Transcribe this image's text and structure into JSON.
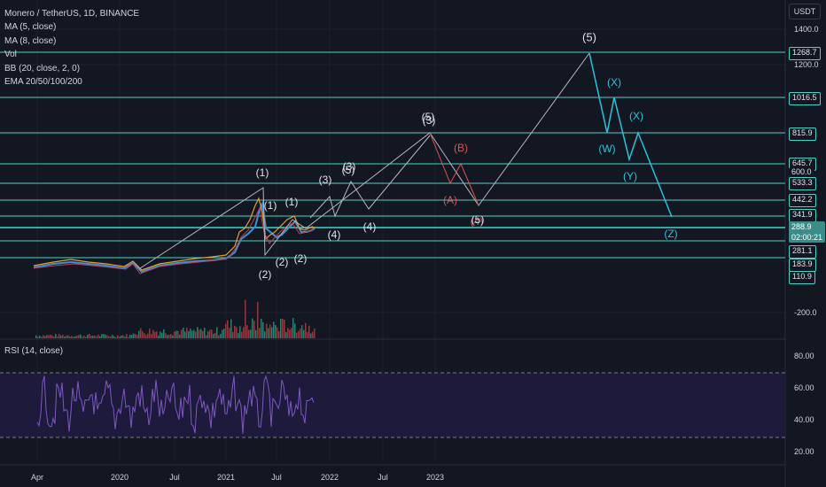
{
  "header": {
    "title": "Monero / TetherUS, 1D, BINANCE",
    "indicators": [
      "MA (5, close)",
      "MA (8, close)",
      "Vol",
      "BB (20, close, 2, 0)",
      "EMA 20/50/100/200"
    ]
  },
  "rsi_panel": {
    "title": "RSI (14, close)",
    "levels": [
      "80.00",
      "60.00",
      "40.00",
      "20.00"
    ]
  },
  "price_scale": {
    "currency": "USDT",
    "labels": [
      "1400.0",
      "1200.0",
      "-200.0"
    ],
    "tags": [
      "1268.7",
      "1016.5",
      "815.9",
      "645.7",
      "600.0",
      "533.3",
      "442.2",
      "341.9",
      "281.1",
      "183.9",
      "110.9"
    ],
    "current_price": "288.9",
    "countdown": "02:00:21"
  },
  "time_axis": [
    "Apr",
    "2020",
    "Jul",
    "2021",
    "Jul",
    "2022",
    "Jul",
    "2023"
  ],
  "wave_labels": [
    "(1)",
    "(2)",
    "(1)",
    "(2)",
    "(1)",
    "(2)",
    "(3)",
    "(4)",
    "(3)",
    "(5)",
    "(4)",
    "(5)",
    "(3)",
    "(5)",
    "(A)",
    "(B)",
    "(4)",
    "(5)",
    "(W)",
    "(X)",
    "(X)",
    "(Y)",
    "(Z)"
  ],
  "colors": {
    "background": "#131722",
    "wave_lines": "#b2b5be",
    "levels": "#4dd0c7",
    "correction": "#e05252",
    "rsi": "#7e57c2",
    "rsi_band": "#1e1a3c"
  }
}
